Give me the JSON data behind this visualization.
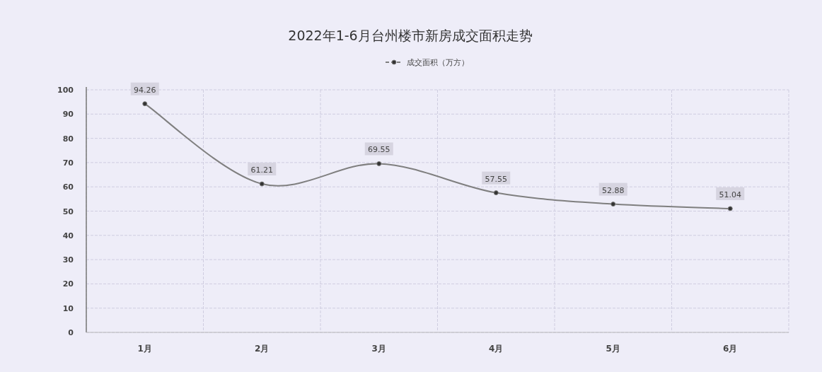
{
  "chart_data": {
    "type": "line",
    "title": "2022年1-6月台州楼市新房成交面积走势",
    "categories": [
      "1月",
      "2月",
      "3月",
      "4月",
      "5月",
      "6月"
    ],
    "series": [
      {
        "name": "成交面积（万方）",
        "color": "#7f7f7f",
        "values": [
          94.26,
          61.21,
          69.55,
          57.55,
          52.88,
          51.04
        ]
      }
    ],
    "ylim": [
      0,
      100
    ],
    "yticks": [
      0,
      10,
      20,
      30,
      40,
      50,
      60,
      70,
      80,
      90,
      100
    ],
    "grid": true,
    "legend": "top",
    "marker": "circle",
    "data_labels": true
  }
}
